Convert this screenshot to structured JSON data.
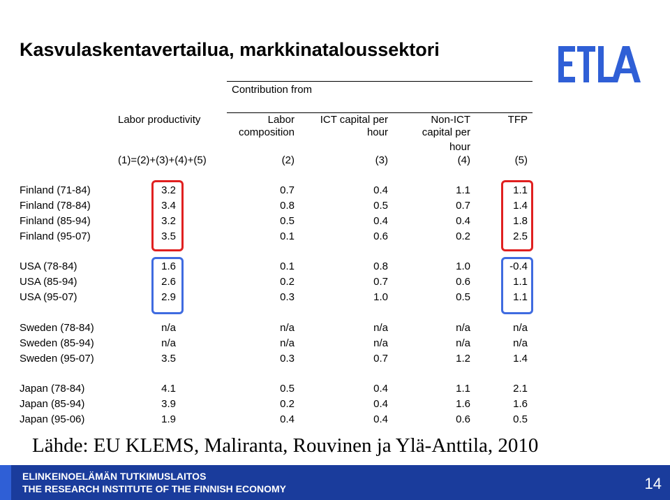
{
  "slide": {
    "title": "Kasvulaskentavertailua, markkinataloussektori",
    "logo_text": "ETLA",
    "page_number": "14",
    "source": "Lähde: EU KLEMS, Maliranta, Rouvinen ja Ylä-Anttila, 2010",
    "footer_line1": "ELINKEINOELÄMÄN TUTKIMUSLAITOS",
    "footer_line2": "THE RESEARCH INSTITUTE OF THE FINNISH ECONOMY"
  },
  "colors": {
    "accent": "#1a3c9c",
    "logo": "#2f5fd6",
    "box_red": "#e02020",
    "box_blue": "#3f6be0"
  },
  "table": {
    "group_header": "Contribution from",
    "columns": [
      {
        "name": "Labor productivity",
        "name2": "",
        "name3": "",
        "code": "(1)=(2)+(3)+(4)+(5)"
      },
      {
        "name": "Labor",
        "name2": "composition",
        "name3": "",
        "code": "(2)"
      },
      {
        "name": "ICT capital per",
        "name2": "hour",
        "name3": "",
        "code": "(3)"
      },
      {
        "name": "Non-ICT",
        "name2": "capital per",
        "name3": "hour",
        "code": "(4)"
      },
      {
        "name": "TFP",
        "name2": "",
        "name3": "",
        "code": "(5)"
      }
    ],
    "groups": [
      {
        "rows": [
          {
            "label": "Finland (71-84)",
            "values": [
              "3.2",
              "0.7",
              "0.4",
              "1.1",
              "1.1"
            ]
          },
          {
            "label": "Finland (78-84)",
            "values": [
              "3.4",
              "0.8",
              "0.5",
              "0.7",
              "1.4"
            ]
          },
          {
            "label": "Finland (85-94)",
            "values": [
              "3.2",
              "0.5",
              "0.4",
              "0.4",
              "1.8"
            ]
          },
          {
            "label": "Finland (95-07)",
            "values": [
              "3.5",
              "0.1",
              "0.6",
              "0.2",
              "2.5"
            ]
          }
        ]
      },
      {
        "rows": [
          {
            "label": "USA (78-84)",
            "values": [
              "1.6",
              "0.1",
              "0.8",
              "1.0",
              "-0.4"
            ]
          },
          {
            "label": "USA (85-94)",
            "values": [
              "2.6",
              "0.2",
              "0.7",
              "0.6",
              "1.1"
            ]
          },
          {
            "label": "USA (95-07)",
            "values": [
              "2.9",
              "0.3",
              "1.0",
              "0.5",
              "1.1"
            ]
          }
        ]
      },
      {
        "rows": [
          {
            "label": "Sweden (78-84)",
            "values": [
              "n/a",
              "n/a",
              "n/a",
              "n/a",
              "n/a"
            ]
          },
          {
            "label": "Sweden (85-94)",
            "values": [
              "n/a",
              "n/a",
              "n/a",
              "n/a",
              "n/a"
            ]
          },
          {
            "label": "Sweden (95-07)",
            "values": [
              "3.5",
              "0.3",
              "0.7",
              "1.2",
              "1.4"
            ]
          }
        ]
      },
      {
        "rows": [
          {
            "label": "Japan (78-84)",
            "values": [
              "4.1",
              "0.5",
              "0.4",
              "1.1",
              "2.1"
            ]
          },
          {
            "label": "Japan (85-94)",
            "values": [
              "3.9",
              "0.2",
              "0.4",
              "1.6",
              "1.6"
            ]
          },
          {
            "label": "Japan (95-06)",
            "values": [
              "1.9",
              "0.4",
              "0.4",
              "0.6",
              "0.5"
            ]
          }
        ]
      }
    ]
  }
}
